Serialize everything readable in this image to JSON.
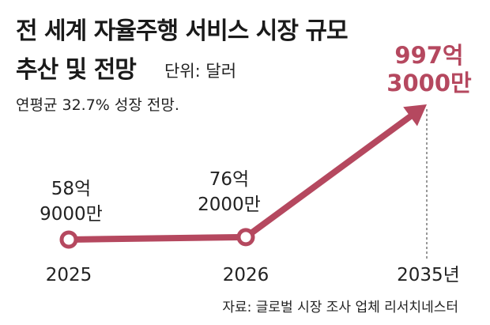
{
  "header": {
    "title_line1": "전 세계 자율주행 서비스 시장 규모",
    "title_line2": "추산 및 전망",
    "unit": "단위: 달러",
    "subtitle": "연평균 32.7% 성장 전망."
  },
  "source": "자료: 글로벌 시장 조사 업체 리서치네스터",
  "colors": {
    "accent": "#b5485f",
    "text": "#222222"
  },
  "chart_data": {
    "type": "line",
    "x": [
      "2025",
      "2026",
      "2035년"
    ],
    "values": [
      5890000000,
      7620000000,
      99730000000
    ],
    "value_labels": [
      [
        "58억",
        "9000만"
      ],
      [
        "76억",
        "2000만"
      ],
      [
        "997억",
        "3000만"
      ]
    ],
    "ylabel": "",
    "xlabel": ""
  }
}
